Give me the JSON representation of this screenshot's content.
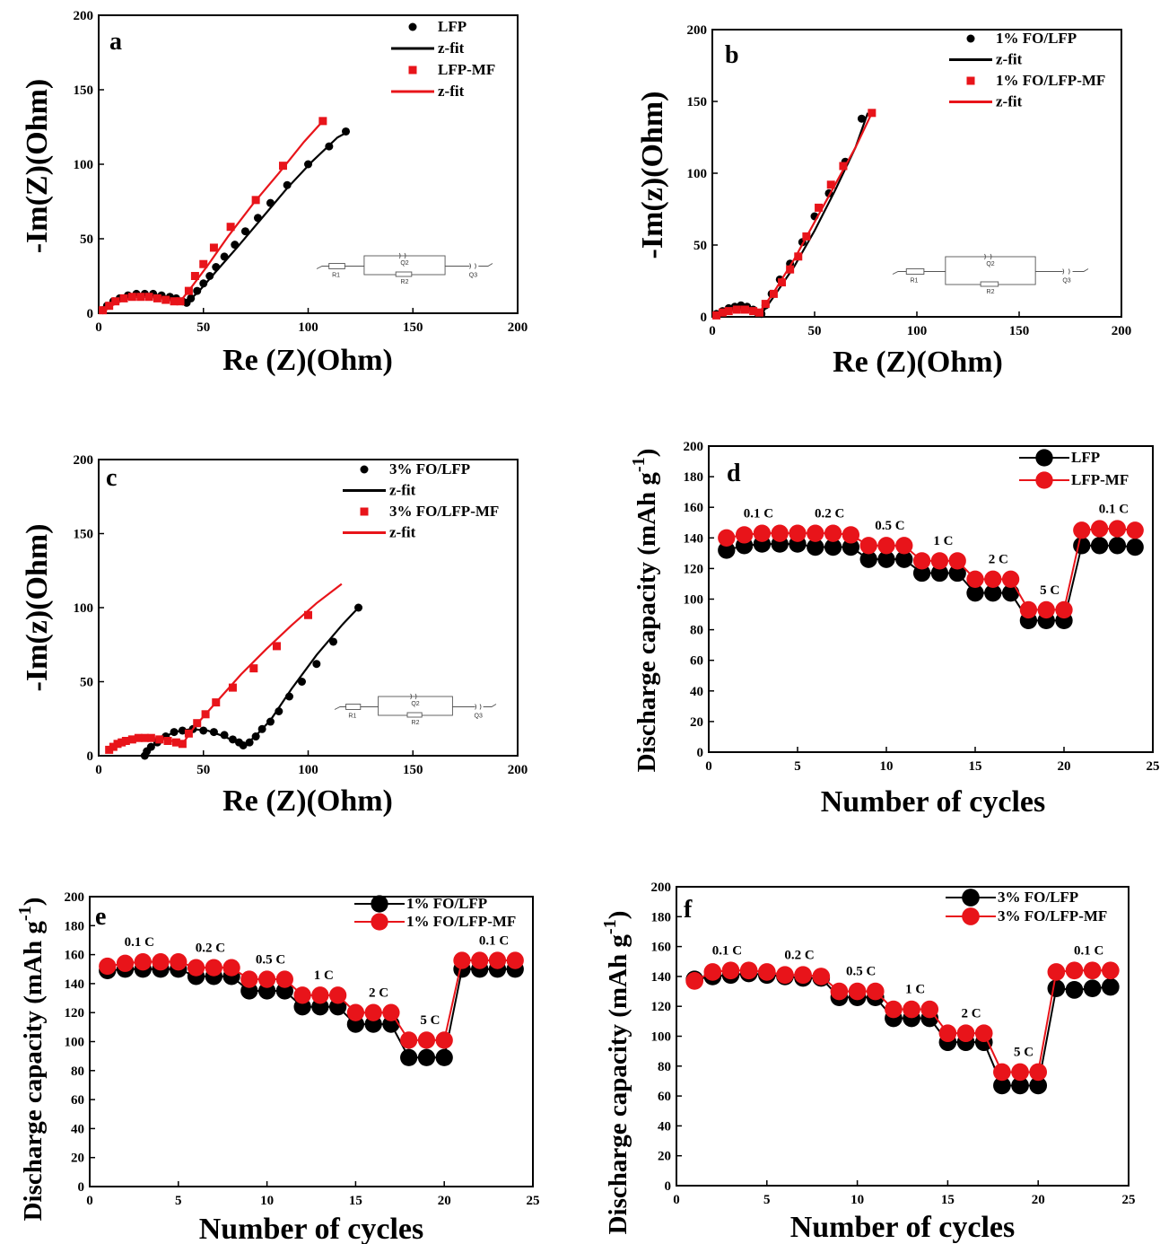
{
  "chart_data": [
    {
      "id": "a",
      "type": "scatter",
      "label": "a",
      "xlabel": "Re (Z)(Ohm)",
      "ylabel": "-Im(Z)(Ohm)",
      "xlim": [
        0,
        200
      ],
      "ylim": [
        0,
        200
      ],
      "xticks": [
        "0",
        "50",
        "100",
        "150",
        "200"
      ],
      "yticks": [
        "0",
        "50",
        "100",
        "150",
        "200"
      ],
      "legend": [
        "LFP",
        "z-fit",
        "LFP-MF",
        "z-fit"
      ],
      "circuit": [
        "R1",
        "Q2",
        "R2",
        "Q3"
      ],
      "series": [
        {
          "name": "LFP",
          "marker": "circle",
          "color": "#000000",
          "x": [
            2,
            4,
            7,
            10,
            14,
            18,
            22,
            26,
            30,
            34,
            37,
            40,
            42,
            44,
            47,
            50,
            53,
            56,
            60,
            65,
            70,
            76,
            82,
            90,
            100,
            110,
            118
          ],
          "y": [
            2,
            5,
            8,
            10,
            12,
            13,
            13,
            13,
            12,
            11,
            10,
            8,
            7,
            10,
            15,
            20,
            25,
            31,
            38,
            46,
            55,
            64,
            74,
            86,
            100,
            112,
            122
          ]
        },
        {
          "name": "z-fit",
          "color": "#000000",
          "x": [
            2,
            6,
            12,
            18,
            24,
            30,
            36,
            40,
            42,
            48,
            56,
            66,
            78,
            90,
            102,
            114,
            118
          ],
          "y": [
            1,
            6,
            11,
            13,
            13,
            12,
            10,
            8,
            7,
            15,
            28,
            44,
            64,
            84,
            102,
            118,
            121
          ]
        },
        {
          "name": "LFP-MF",
          "marker": "square",
          "color": "#e8141a",
          "x": [
            2,
            5,
            8,
            12,
            16,
            20,
            24,
            28,
            32,
            36,
            39,
            43,
            46,
            50,
            55,
            63,
            75,
            88,
            107
          ],
          "y": [
            2,
            5,
            8,
            10,
            11,
            11,
            11,
            10,
            9,
            8,
            8,
            15,
            25,
            33,
            44,
            58,
            76,
            99,
            129
          ]
        },
        {
          "name": "z-fit",
          "color": "#e8141a",
          "x": [
            2,
            6,
            12,
            18,
            24,
            30,
            36,
            39,
            44,
            52,
            62,
            74,
            86,
            98,
            107
          ],
          "y": [
            1,
            5,
            9,
            11,
            11,
            10,
            8,
            8,
            17,
            32,
            52,
            74,
            94,
            115,
            129
          ]
        }
      ]
    },
    {
      "id": "b",
      "type": "scatter",
      "label": "b",
      "xlabel": "Re (Z)(Ohm)",
      "ylabel": "-Im(z)(Ohm)",
      "xlim": [
        0,
        200
      ],
      "ylim": [
        0,
        200
      ],
      "xticks": [
        "0",
        "50",
        "100",
        "150",
        "200"
      ],
      "yticks": [
        "0",
        "50",
        "100",
        "150",
        "200"
      ],
      "legend": [
        "1% FO/LFP",
        "z-fit",
        "1% FO/LFP-MF",
        "z-fit"
      ],
      "circuit": [
        "R1",
        "Q2",
        "R2",
        "Q3"
      ],
      "series": [
        {
          "name": "1% FO/LFP",
          "marker": "circle",
          "color": "#000000",
          "x": [
            2,
            5,
            8,
            11,
            14,
            17,
            20,
            22,
            24,
            26,
            29,
            33,
            38,
            44,
            50,
            57,
            65,
            73
          ],
          "y": [
            2,
            4,
            6,
            7,
            8,
            7,
            5,
            3,
            2,
            8,
            16,
            26,
            37,
            52,
            70,
            86,
            108,
            138
          ]
        },
        {
          "name": "z-fit",
          "color": "#000000",
          "x": [
            2,
            6,
            10,
            14,
            18,
            22,
            24,
            30,
            40,
            50,
            60,
            70,
            76
          ],
          "y": [
            1,
            4,
            7,
            8,
            7,
            4,
            2,
            14,
            35,
            60,
            88,
            118,
            142
          ]
        },
        {
          "name": "1% FO/LFP-MF",
          "marker": "square",
          "color": "#e8141a",
          "x": [
            2,
            5,
            8,
            12,
            16,
            20,
            23,
            26,
            30,
            34,
            38,
            42,
            46,
            52,
            58,
            64,
            78
          ],
          "y": [
            1,
            3,
            4,
            5,
            5,
            4,
            3,
            9,
            16,
            24,
            33,
            42,
            56,
            76,
            92,
            105,
            142
          ]
        },
        {
          "name": "z-fit",
          "color": "#e8141a",
          "x": [
            2,
            8,
            14,
            20,
            23,
            30,
            40,
            50,
            60,
            70,
            78
          ],
          "y": [
            1,
            4,
            5,
            4,
            3,
            17,
            40,
            66,
            92,
            118,
            142
          ]
        }
      ]
    },
    {
      "id": "c",
      "type": "scatter",
      "label": "c",
      "xlabel": "Re (Z)(Ohm)",
      "ylabel": "-Im(z)(Ohm)",
      "xlim": [
        0,
        200
      ],
      "ylim": [
        0,
        200
      ],
      "xticks": [
        "0",
        "50",
        "100",
        "150",
        "200"
      ],
      "yticks": [
        "0",
        "50",
        "100",
        "150",
        "200"
      ],
      "legend": [
        "3% FO/LFP",
        "z-fit",
        "3% FO/LFP-MF",
        "z-fit"
      ],
      "circuit": [
        "R1",
        "Q2",
        "R2",
        "Q3"
      ],
      "series": [
        {
          "name": "3% FO/LFP",
          "marker": "circle",
          "color": "#000000",
          "x": [
            22,
            23,
            25,
            28,
            32,
            36,
            40,
            45,
            50,
            55,
            60,
            64,
            67,
            69,
            72,
            75,
            78,
            82,
            86,
            91,
            97,
            104,
            112,
            124
          ],
          "y": [
            0,
            3,
            6,
            9,
            13,
            16,
            17,
            18,
            17,
            16,
            14,
            11,
            9,
            7,
            9,
            13,
            18,
            23,
            30,
            40,
            50,
            62,
            77,
            100
          ]
        },
        {
          "name": "z-fit",
          "color": "#000000",
          "x": [
            22,
            28,
            36,
            44,
            52,
            60,
            66,
            69,
            74,
            82,
            92,
            104,
            116,
            124
          ],
          "y": [
            0,
            10,
            16,
            18,
            17,
            13,
            9,
            7,
            12,
            24,
            45,
            68,
            88,
            100
          ]
        },
        {
          "name": "3% FO/LFP-MF",
          "marker": "square",
          "color": "#e8141a",
          "x": [
            5,
            7,
            9,
            11,
            13,
            16,
            19,
            22,
            25,
            29,
            33,
            37,
            40,
            43,
            47,
            51,
            56,
            64,
            74,
            85,
            100
          ],
          "y": [
            4,
            6,
            8,
            9,
            10,
            11,
            12,
            12,
            12,
            11,
            10,
            9,
            8,
            15,
            22,
            28,
            36,
            46,
            59,
            74,
            95
          ]
        },
        {
          "name": "z-fit",
          "color": "#e8141a",
          "x": [
            4,
            8,
            14,
            20,
            26,
            32,
            38,
            40,
            46,
            56,
            68,
            80,
            92,
            104,
            116
          ],
          "y": [
            2,
            7,
            10,
            12,
            12,
            11,
            9,
            8,
            20,
            36,
            55,
            72,
            88,
            103,
            116
          ]
        }
      ]
    },
    {
      "id": "d",
      "type": "line",
      "label": "d",
      "xlabel": "Number of cycles",
      "ylabel": "Discharge capacity (mAh g",
      "ylabel_sup": "-1",
      "ylabel_close": ")",
      "xlim": [
        0,
        25
      ],
      "ylim": [
        0,
        200
      ],
      "xticks": [
        "0",
        "5",
        "10",
        "15",
        "20",
        "25"
      ],
      "yticks": [
        "0",
        "20",
        "40",
        "60",
        "80",
        "100",
        "120",
        "140",
        "160",
        "180",
        "200"
      ],
      "legend": [
        "LFP",
        "LFP-MF"
      ],
      "rate_labels": [
        "0.1 C",
        "0.2 C",
        "0.5 C",
        "1 C",
        "2 C",
        "5 C",
        "0.1 C"
      ],
      "x": [
        1,
        2,
        3,
        4,
        5,
        6,
        7,
        8,
        9,
        10,
        11,
        12,
        13,
        14,
        15,
        16,
        17,
        18,
        19,
        20,
        21,
        22,
        23,
        24
      ],
      "series": [
        {
          "name": "LFP",
          "color": "#000000",
          "values": [
            132,
            135,
            136,
            136,
            136,
            134,
            134,
            134,
            126,
            126,
            126,
            117,
            117,
            117,
            104,
            104,
            104,
            86,
            86,
            86,
            135,
            135,
            135,
            134
          ]
        },
        {
          "name": "LFP-MF",
          "color": "#e8141a",
          "values": [
            140,
            142,
            143,
            143,
            143,
            143,
            143,
            142,
            135,
            135,
            135,
            125,
            125,
            125,
            113,
            113,
            113,
            93,
            93,
            93,
            145,
            146,
            146,
            145
          ]
        }
      ]
    },
    {
      "id": "e",
      "type": "line",
      "label": "e",
      "xlabel": "Number of cycles",
      "ylabel": "Discharge capacity (mAh g",
      "ylabel_sup": "-1",
      "ylabel_close": ")",
      "xlim": [
        0,
        25
      ],
      "ylim": [
        0,
        200
      ],
      "xticks": [
        "0",
        "5",
        "10",
        "15",
        "20",
        "25"
      ],
      "yticks": [
        "0",
        "20",
        "40",
        "60",
        "80",
        "100",
        "120",
        "140",
        "160",
        "180",
        "200"
      ],
      "legend": [
        "1% FO/LFP",
        "1% FO/LFP-MF"
      ],
      "rate_labels": [
        "0.1 C",
        "0.2 C",
        "0.5 C",
        "1 C",
        "2 C",
        "5 C",
        "0.1 C"
      ],
      "x": [
        1,
        2,
        3,
        4,
        5,
        6,
        7,
        8,
        9,
        10,
        11,
        12,
        13,
        14,
        15,
        16,
        17,
        18,
        19,
        20,
        21,
        22,
        23,
        24
      ],
      "series": [
        {
          "name": "1% FO/LFP",
          "color": "#000000",
          "values": [
            149,
            150,
            150,
            150,
            150,
            145,
            145,
            145,
            135,
            135,
            135,
            124,
            124,
            124,
            112,
            112,
            112,
            89,
            89,
            89,
            150,
            150,
            150,
            150
          ]
        },
        {
          "name": "1% FO/LFP-MF",
          "color": "#e8141a",
          "values": [
            152,
            154,
            155,
            155,
            155,
            151,
            151,
            151,
            143,
            143,
            143,
            132,
            132,
            132,
            120,
            120,
            120,
            101,
            101,
            101,
            156,
            156,
            156,
            156
          ]
        }
      ]
    },
    {
      "id": "f",
      "type": "line",
      "label": "f",
      "xlabel": "Number of cycles",
      "ylabel": "Discharge capacity (mAh g",
      "ylabel_sup": "-1",
      "ylabel_close": ")",
      "xlim": [
        0,
        25
      ],
      "ylim": [
        0,
        200
      ],
      "xticks": [
        "0",
        "5",
        "10",
        "15",
        "20",
        "25"
      ],
      "yticks": [
        "0",
        "20",
        "40",
        "60",
        "80",
        "100",
        "120",
        "140",
        "160",
        "180",
        "200"
      ],
      "legend": [
        "3% FO/LFP",
        "3% FO/LFP-MF"
      ],
      "rate_labels": [
        "0.1 C",
        "0.2 C",
        "0.5 C",
        "1 C",
        "2 C",
        "5 C",
        "0.1 C"
      ],
      "x": [
        1,
        2,
        3,
        4,
        5,
        6,
        7,
        8,
        9,
        10,
        11,
        12,
        13,
        14,
        15,
        16,
        17,
        18,
        19,
        20,
        21,
        22,
        23,
        24
      ],
      "series": [
        {
          "name": "3% FO/LFP",
          "color": "#000000",
          "values": [
            138,
            140,
            141,
            142,
            141,
            140,
            139,
            139,
            126,
            126,
            126,
            112,
            112,
            112,
            96,
            96,
            96,
            67,
            67,
            67,
            132,
            131,
            132,
            133
          ]
        },
        {
          "name": "3% FO/LFP-MF",
          "color": "#e8141a",
          "values": [
            137,
            143,
            144,
            144,
            143,
            141,
            141,
            140,
            130,
            130,
            130,
            118,
            118,
            118,
            102,
            102,
            102,
            76,
            76,
            76,
            143,
            144,
            144,
            144
          ]
        }
      ]
    }
  ]
}
